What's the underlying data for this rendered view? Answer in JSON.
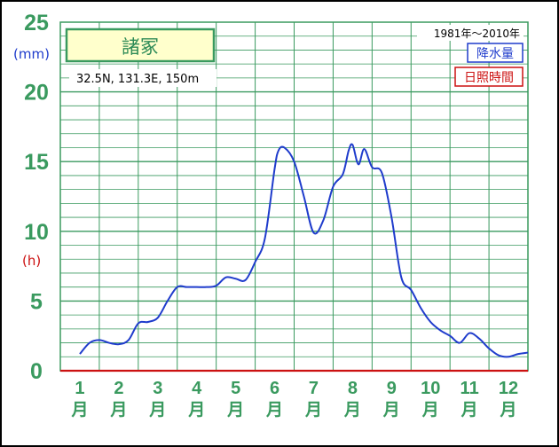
{
  "chart_data": {
    "type": "line",
    "station": "諸冢",
    "coordinates": "32.5N,  131.3E,  150m",
    "period": "1981年〜2010年",
    "left_unit": "(mm)",
    "right_unit": "(h)",
    "legend": [
      {
        "label": "降水量",
        "color": "#1f3ccc"
      },
      {
        "label": "日照時間",
        "color": "#cc1111"
      }
    ],
    "categories": [
      "1",
      "2",
      "3",
      "4",
      "5",
      "6",
      "7",
      "8",
      "9",
      "10",
      "11",
      "12"
    ],
    "month_suffix": "月",
    "ylim": [
      0,
      25
    ],
    "yticks": [
      "0",
      "5",
      "10",
      "15",
      "20",
      "25"
    ],
    "grid": true,
    "series": [
      {
        "name": "降水量",
        "color": "#1f3ccc",
        "x": [
          1,
          1.25,
          1.5,
          1.75,
          2,
          2.25,
          2.5,
          2.75,
          3,
          3.25,
          3.5,
          3.75,
          4,
          4.25,
          4.5,
          4.75,
          5,
          5.25,
          5.5,
          5.75,
          6,
          6.1,
          6.25,
          6.5,
          6.75,
          7,
          7.25,
          7.5,
          7.75,
          7.9,
          8,
          8.15,
          8.3,
          8.5,
          8.75,
          9,
          9.25,
          9.5,
          9.75,
          10,
          10.25,
          10.5,
          10.75,
          11,
          11.25,
          11.5,
          11.75,
          12,
          12.25,
          12.5
        ],
        "values": [
          1.2,
          2.0,
          2.2,
          2.0,
          1.9,
          2.2,
          3.4,
          3.5,
          3.8,
          5.0,
          6.0,
          6.0,
          6.0,
          6.0,
          6.1,
          6.7,
          6.6,
          6.5,
          7.8,
          9.5,
          14.5,
          15.8,
          16.0,
          15.0,
          12.5,
          9.9,
          10.8,
          13.2,
          14.1,
          15.8,
          16.2,
          14.8,
          15.9,
          14.6,
          14.2,
          11.0,
          6.7,
          5.8,
          4.5,
          3.5,
          2.9,
          2.5,
          2.0,
          2.7,
          2.3,
          1.6,
          1.1,
          1.0,
          1.2,
          1.3
        ]
      },
      {
        "name": "日照時間",
        "color": "#cc1111",
        "x": [
          0.5,
          12.5
        ],
        "values": [
          0,
          0
        ]
      }
    ]
  }
}
